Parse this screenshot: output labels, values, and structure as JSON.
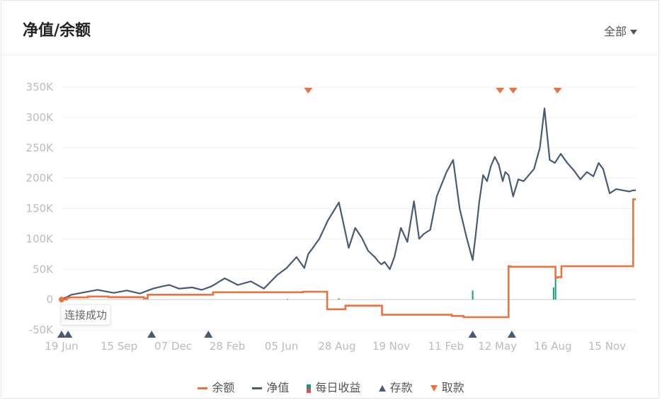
{
  "header": {
    "title": "净值/余额",
    "filter_label": "全部"
  },
  "tooltip": {
    "text": "连接成功"
  },
  "colors": {
    "balance": "#f07040",
    "net_value": "#4b5a73",
    "daily_gain_pos": "#1a9a80",
    "daily_gain_neg": "#e05050",
    "deposit": "#4b5a73",
    "withdraw": "#f07040",
    "grid": "#f0f0f0"
  },
  "chart_data": {
    "type": "line",
    "title": "净值/余额",
    "ylim": [
      -50000,
      350000
    ],
    "yticks": [
      -50000,
      0,
      50000,
      100000,
      150000,
      200000,
      250000,
      300000,
      350000
    ],
    "ytick_labels": [
      "-50K",
      "0",
      "50K",
      "100K",
      "150K",
      "200K",
      "250K",
      "300K",
      "350K"
    ],
    "x_range_days": [
      0,
      880
    ],
    "xticks_days": [
      0,
      88,
      171,
      254,
      337,
      422,
      505,
      589,
      668,
      753,
      836
    ],
    "xtick_labels": [
      "19 Jun",
      "15 Sep",
      "07 Dec",
      "28 Feb",
      "05 Jun",
      "28 Aug",
      "19 Nov",
      "11 Feb",
      "12 May",
      "16 Aug",
      "15 Nov"
    ],
    "grid": true,
    "legend_position": "bottom",
    "legend": [
      "余额",
      "净值",
      "每日收益",
      "存款",
      "取款"
    ],
    "series": [
      {
        "name": "余额",
        "style": "step",
        "x": [
          0,
          8,
          12,
          40,
          72,
          126,
          132,
          228,
          232,
          367,
          370,
          400,
          407,
          432,
          435,
          488,
          491,
          595,
          598,
          612,
          616,
          617,
          630,
          685,
          688,
          752,
          757,
          760,
          766,
          876
        ],
        "y": [
          0,
          3000,
          3500,
          5000,
          4000,
          2000,
          8000,
          8000,
          12000,
          12000,
          13000,
          13000,
          -16000,
          -16000,
          -10000,
          -10000,
          -25000,
          -25000,
          -27000,
          -27000,
          -29000,
          -29000,
          -29000,
          55000,
          54000,
          54000,
          36000,
          37000,
          55000,
          165000
        ]
      },
      {
        "name": "净值",
        "style": "line",
        "x": [
          0,
          15,
          35,
          55,
          80,
          100,
          120,
          140,
          155,
          165,
          180,
          200,
          215,
          230,
          250,
          270,
          290,
          310,
          330,
          345,
          360,
          372,
          378,
          385,
          395,
          408,
          425,
          440,
          450,
          460,
          470,
          480,
          486,
          490,
          495,
          503,
          510,
          520,
          530,
          540,
          548,
          555,
          565,
          575,
          590,
          600,
          610,
          620,
          630,
          635,
          640,
          646,
          652,
          658,
          664,
          670,
          676,
          680,
          685,
          692,
          700,
          708,
          716,
          724,
          733,
          740,
          748,
          756,
          765,
          775,
          785,
          795,
          805,
          815,
          823,
          830,
          840,
          850,
          860,
          870,
          876,
          880
        ],
        "y": [
          0,
          8000,
          12000,
          16000,
          11000,
          15000,
          10000,
          18000,
          22000,
          24000,
          18000,
          20000,
          16000,
          22000,
          35000,
          24000,
          30000,
          18000,
          40000,
          52000,
          70000,
          52000,
          75000,
          85000,
          100000,
          130000,
          160000,
          85000,
          118000,
          102000,
          80000,
          70000,
          62000,
          58000,
          62000,
          50000,
          70000,
          118000,
          95000,
          162000,
          100000,
          108000,
          115000,
          170000,
          210000,
          230000,
          150000,
          105000,
          65000,
          110000,
          160000,
          205000,
          195000,
          220000,
          235000,
          222000,
          195000,
          210000,
          205000,
          170000,
          198000,
          195000,
          205000,
          215000,
          250000,
          315000,
          230000,
          225000,
          240000,
          225000,
          213000,
          198000,
          210000,
          203000,
          225000,
          215000,
          175000,
          182000,
          180000,
          178000,
          180000,
          180000
        ]
      },
      {
        "name": "每日收益",
        "style": "bar",
        "x": [
          346,
          425,
          630,
          754,
          757
        ],
        "y": [
          1000,
          2000,
          15000,
          20000,
          50000
        ]
      }
    ],
    "deposits_days": [
      0,
      10,
      138,
      225,
      630,
      690
    ],
    "withdrawals_days": [
      378,
      672,
      692,
      760
    ]
  },
  "legend_items": [
    {
      "label": "余额"
    },
    {
      "label": "净值"
    },
    {
      "label": "每日收益"
    },
    {
      "label": "存款"
    },
    {
      "label": "取款"
    }
  ]
}
